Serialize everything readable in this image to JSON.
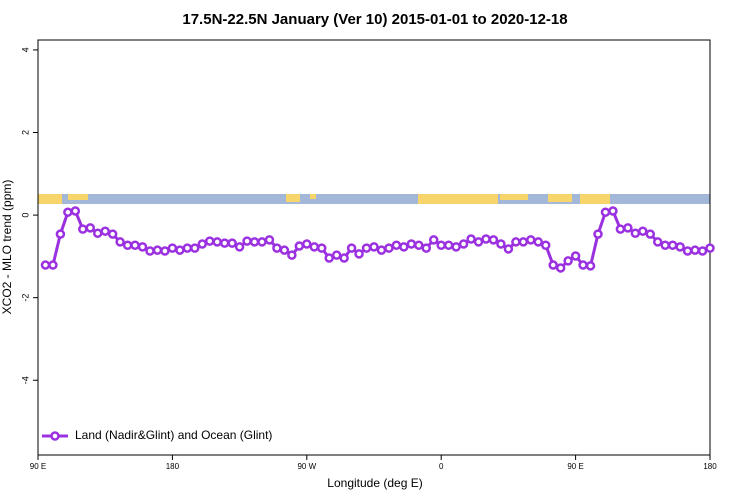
{
  "chart_data": {
    "type": "line",
    "title": "17.5N-22.5N January (Ver 10)   2015-01-01 to 2020-12-18",
    "x_label": "Longitude (deg E)",
    "y_label": "XCO2 - MLO trend (ppm)",
    "x": [
      95,
      100,
      105,
      110,
      115,
      120,
      125,
      130,
      135,
      140,
      145,
      150,
      155,
      160,
      165,
      170,
      175,
      180,
      185,
      190,
      195,
      200,
      205,
      210,
      215,
      220,
      225,
      230,
      235,
      240,
      245,
      250,
      255,
      260,
      265,
      270,
      275,
      280,
      285,
      290,
      295,
      300,
      305,
      310,
      315,
      320,
      325,
      330,
      335,
      340,
      345,
      350,
      355,
      360,
      365,
      370,
      375,
      380,
      385,
      390,
      395,
      400,
      405,
      410,
      415,
      420,
      425,
      430,
      435,
      440,
      445,
      450,
      455,
      460,
      465,
      470,
      475,
      480,
      485,
      490,
      495,
      500,
      505,
      510,
      515,
      520,
      525,
      530,
      535,
      540
    ],
    "series": [
      {
        "name": "Land (Nadir&Glint) and Ocean (Glint)",
        "color": "#9b30e0",
        "values": [
          -1.21,
          -1.21,
          -0.46,
          0.07,
          0.1,
          -0.34,
          -0.31,
          -0.44,
          -0.39,
          -0.46,
          -0.65,
          -0.73,
          -0.73,
          -0.77,
          -0.87,
          -0.85,
          -0.87,
          -0.8,
          -0.85,
          -0.8,
          -0.8,
          -0.7,
          -0.63,
          -0.65,
          -0.68,
          -0.68,
          -0.77,
          -0.63,
          -0.65,
          -0.65,
          -0.6,
          -0.8,
          -0.85,
          -0.97,
          -0.75,
          -0.7,
          -0.77,
          -0.8,
          -1.04,
          -0.97,
          -1.04,
          -0.8,
          -0.94,
          -0.8,
          -0.77,
          -0.85,
          -0.8,
          -0.73,
          -0.77,
          -0.7,
          -0.73,
          -0.8,
          -0.6,
          -0.73,
          -0.73,
          -0.77,
          -0.7,
          -0.58,
          -0.65,
          -0.58,
          -0.6,
          -0.7,
          -0.82,
          -0.65,
          -0.65,
          -0.6,
          -0.65,
          -0.73,
          -1.21,
          -1.28,
          -1.11,
          -0.99,
          -1.21,
          -1.23,
          -0.46,
          0.07,
          0.1,
          -0.34,
          -0.31,
          -0.44,
          -0.39,
          -0.46,
          -0.65,
          -0.73,
          -0.73,
          -0.77,
          -0.87,
          -0.85,
          -0.87,
          -0.8
        ]
      }
    ],
    "xlim": [
      90,
      540
    ],
    "xticks": [
      {
        "value": 90,
        "label": "90 E"
      },
      180,
      {
        "value": 270,
        "label": "90 W"
      },
      {
        "value": 360,
        "label": "0"
      },
      {
        "value": 450,
        "label": "90 E"
      },
      {
        "value": 540,
        "label": "180"
      }
    ],
    "ylim": [
      -5.81,
      4.24
    ],
    "yticks": [
      -4,
      -2,
      0,
      2,
      4
    ],
    "legend": "bottom-left"
  }
}
